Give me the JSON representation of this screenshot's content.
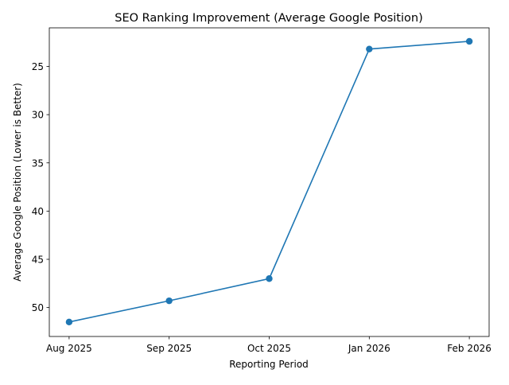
{
  "chart_data": {
    "type": "line",
    "title": "SEO Ranking Improvement (Average Google Position)",
    "xlabel": "Reporting Period",
    "ylabel": "Average Google Position (Lower is Better)",
    "categories": [
      "Aug 2025",
      "Sep 2025",
      "Oct 2025",
      "Jan 2026",
      "Feb 2026"
    ],
    "series": [
      {
        "values": [
          51.5,
          49.3,
          47.0,
          23.2,
          22.4
        ]
      }
    ],
    "y_axis_inverted": true,
    "ylim": [
      53.0,
      21.0
    ],
    "yticks": [
      25,
      30,
      35,
      40,
      45,
      50
    ],
    "grid": false,
    "legend": "none",
    "line_color": "#1f77b4",
    "marker": "circle"
  }
}
